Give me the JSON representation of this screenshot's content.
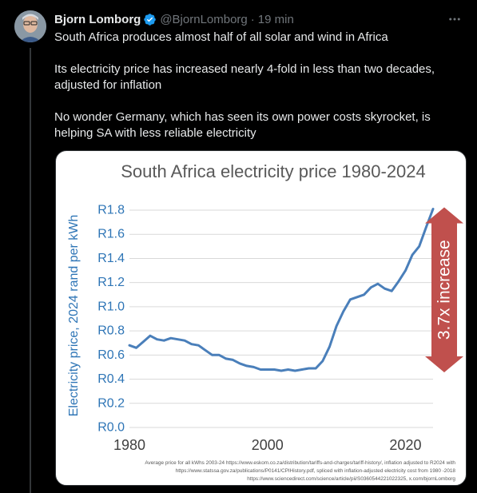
{
  "author": {
    "name": "Bjorn Lomborg",
    "handle": "@BjornLomborg",
    "time": "19 min",
    "separator": "·"
  },
  "icons": {
    "verified": "verified-badge-icon",
    "more": "more-horizontal-icon"
  },
  "colors": {
    "verified": "#1d9bf0",
    "chart_line": "#4a7fba",
    "chart_axis": "#2e75b6",
    "arrow": "#c0504d"
  },
  "tweet": {
    "paragraphs": [
      [
        "South Africa produces almost half of all solar and wind in Africa"
      ],
      [
        "Its electricity price has increased nearly 4-fold in less than two decades,",
        "adjusted for inflation"
      ],
      [
        "No wonder Germany, which has seen its own power costs skyrocket, is",
        "helping SA with less reliable electricity"
      ]
    ]
  },
  "chart_data": {
    "type": "line",
    "title": "South Africa electricity price 1980-2024",
    "ylabel": "Electricity price, 2024 rand per kWh",
    "xlabel": "",
    "xlim": [
      1980,
      2024
    ],
    "ylim": [
      0,
      1.8
    ],
    "x_ticks": [
      1980,
      2000,
      2020
    ],
    "y_ticks": [
      "R0.0",
      "R0.2",
      "R0.4",
      "R0.6",
      "R0.8",
      "R1.0",
      "R1.2",
      "R1.4",
      "R1.6",
      "R1.8"
    ],
    "y_tick_values": [
      0,
      0.2,
      0.4,
      0.6,
      0.8,
      1.0,
      1.2,
      1.4,
      1.6,
      1.8
    ],
    "grid": "horizontal",
    "annotation": "3.7x increase",
    "source_lines": [
      "Average price for all kWhs 2003-24 https://www.eskom.co.za/distribution/tariffs-and-charges/tariff-history/, inflation adjusted to R2024 with",
      "https://www.statssa.gov.za/publications/P0141/CPIHistory.pdf, spliced with inflation-adjusted electricity cost from 1980 -2018",
      "https://www.sciencedirect.com/science/article/pii/S0360544221022325, x.com/bjornLomborg"
    ],
    "series": [
      {
        "x": [
          1980,
          1981,
          1982,
          1983,
          1984,
          1985,
          1986,
          1987,
          1988,
          1989,
          1990,
          1991,
          1992,
          1993,
          1994,
          1995,
          1996,
          1997,
          1998,
          1999,
          2000,
          2001,
          2002,
          2003,
          2004,
          2005,
          2006,
          2007,
          2008,
          2009,
          2010,
          2011,
          2012,
          2013,
          2014,
          2015,
          2016,
          2017,
          2018,
          2019,
          2020,
          2021,
          2022,
          2023,
          2024
        ],
        "values": [
          0.68,
          0.66,
          0.71,
          0.76,
          0.73,
          0.72,
          0.74,
          0.73,
          0.72,
          0.69,
          0.68,
          0.64,
          0.6,
          0.6,
          0.57,
          0.56,
          0.53,
          0.51,
          0.5,
          0.48,
          0.48,
          0.48,
          0.47,
          0.48,
          0.47,
          0.48,
          0.49,
          0.49,
          0.55,
          0.67,
          0.84,
          0.96,
          1.06,
          1.08,
          1.1,
          1.16,
          1.19,
          1.15,
          1.13,
          1.21,
          1.3,
          1.43,
          1.5,
          1.66,
          1.81
        ]
      }
    ]
  }
}
